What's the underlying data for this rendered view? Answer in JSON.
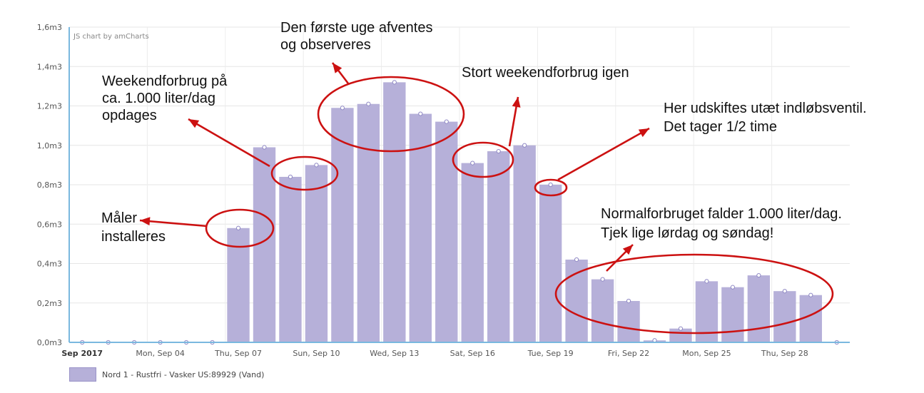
{
  "chart_data": {
    "type": "bar",
    "credit": "JS chart by amCharts",
    "y_ticks": [
      "0,0m3",
      "0,2m3",
      "0,4m3",
      "0,6m3",
      "0,8m3",
      "1,0m3",
      "1,2m3",
      "1,4m3",
      "1,6m3"
    ],
    "ylim": [
      0,
      1.6
    ],
    "x_ticks": [
      {
        "label": "Sep 2017",
        "index": 0,
        "bold": true
      },
      {
        "label": "Mon, Sep 04",
        "index": 3
      },
      {
        "label": "Thu, Sep 07",
        "index": 6
      },
      {
        "label": "Sun, Sep 10",
        "index": 9
      },
      {
        "label": "Wed, Sep 13",
        "index": 12
      },
      {
        "label": "Sat, Sep 16",
        "index": 15
      },
      {
        "label": "Tue, Sep 19",
        "index": 18
      },
      {
        "label": "Fri, Sep 22",
        "index": 21
      },
      {
        "label": "Mon, Sep 25",
        "index": 24
      },
      {
        "label": "Thu, Sep 28",
        "index": 27
      }
    ],
    "series": [
      {
        "name": "Nord 1 - Rustfri - Vasker US:89929 (Vand)",
        "color": "#b6b0d9",
        "values": [
          0,
          0,
          0,
          0,
          0,
          0,
          0.58,
          0.99,
          0.84,
          0.9,
          1.19,
          1.21,
          1.32,
          1.16,
          1.12,
          0.91,
          0.97,
          1.0,
          0.8,
          0.42,
          0.32,
          0.21,
          0.01,
          0.07,
          0.31,
          0.28,
          0.34,
          0.26,
          0.24,
          0
        ]
      }
    ],
    "grid": true,
    "legend_position": "bottom-left"
  },
  "annotations": {
    "color": "#cc1111",
    "items": [
      {
        "lines": [
          "Måler",
          "installeres"
        ]
      },
      {
        "lines": [
          "Weekendforbrug på",
          "ca. 1.000 liter/dag",
          "opdages"
        ]
      },
      {
        "lines": [
          "Den første uge afventes",
          "og observeres"
        ]
      },
      {
        "lines": [
          "Stort weekendforbrug igen"
        ]
      },
      {
        "lines": [
          "Her udskiftes utæt indløbsventil.",
          "Det tager 1/2 time"
        ]
      },
      {
        "lines": [
          "Normalforbruget falder 1.000 liter/dag.",
          "Tjek lige lørdag og søndag!"
        ]
      }
    ]
  }
}
